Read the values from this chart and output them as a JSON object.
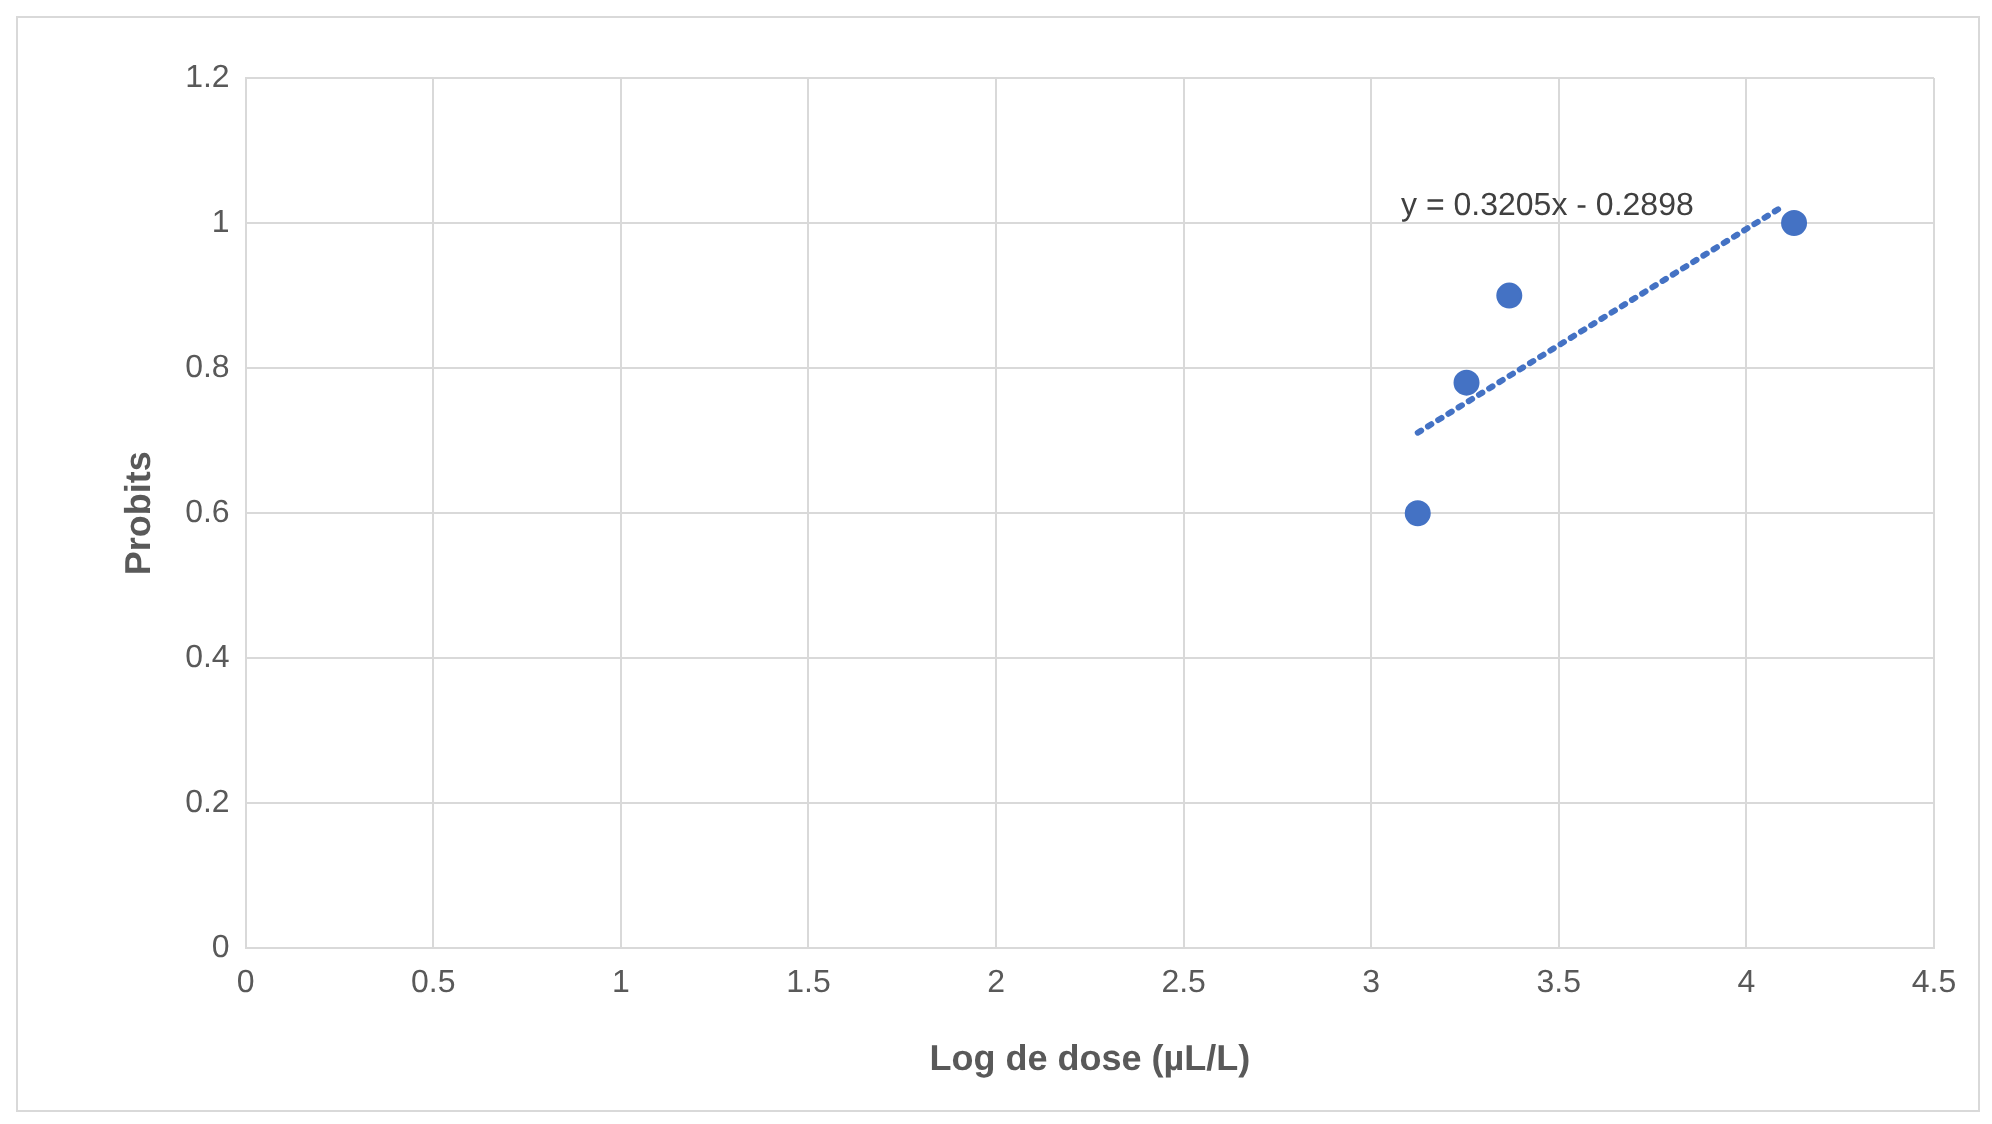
{
  "chart_data": {
    "type": "scatter",
    "xlabel": "Log de dose (µL/L)",
    "ylabel": "Probits",
    "xlim": [
      0,
      4.5
    ],
    "ylim": [
      0,
      1.2
    ],
    "xticks": [
      0,
      0.5,
      1,
      1.5,
      2,
      2.5,
      3,
      3.5,
      4,
      4.5
    ],
    "yticks": [
      0,
      0.2,
      0.4,
      0.6,
      0.8,
      1,
      1.2
    ],
    "grid": true,
    "marker": "circle",
    "series": [
      {
        "color": "#4472c4",
        "x": [
          3.124,
          3.254,
          3.368,
          4.127
        ],
        "values": [
          0.6,
          0.78,
          0.9,
          1.0
        ]
      },
      {
        "type": "line",
        "color": "#4472c4",
        "line_style": "dotted",
        "marker": "none",
        "x": [
          3.124,
          4.094
        ],
        "values": [
          0.711,
          1.022
        ]
      }
    ],
    "annotations": [
      "y = 0.3205x - 0.2898"
    ]
  }
}
